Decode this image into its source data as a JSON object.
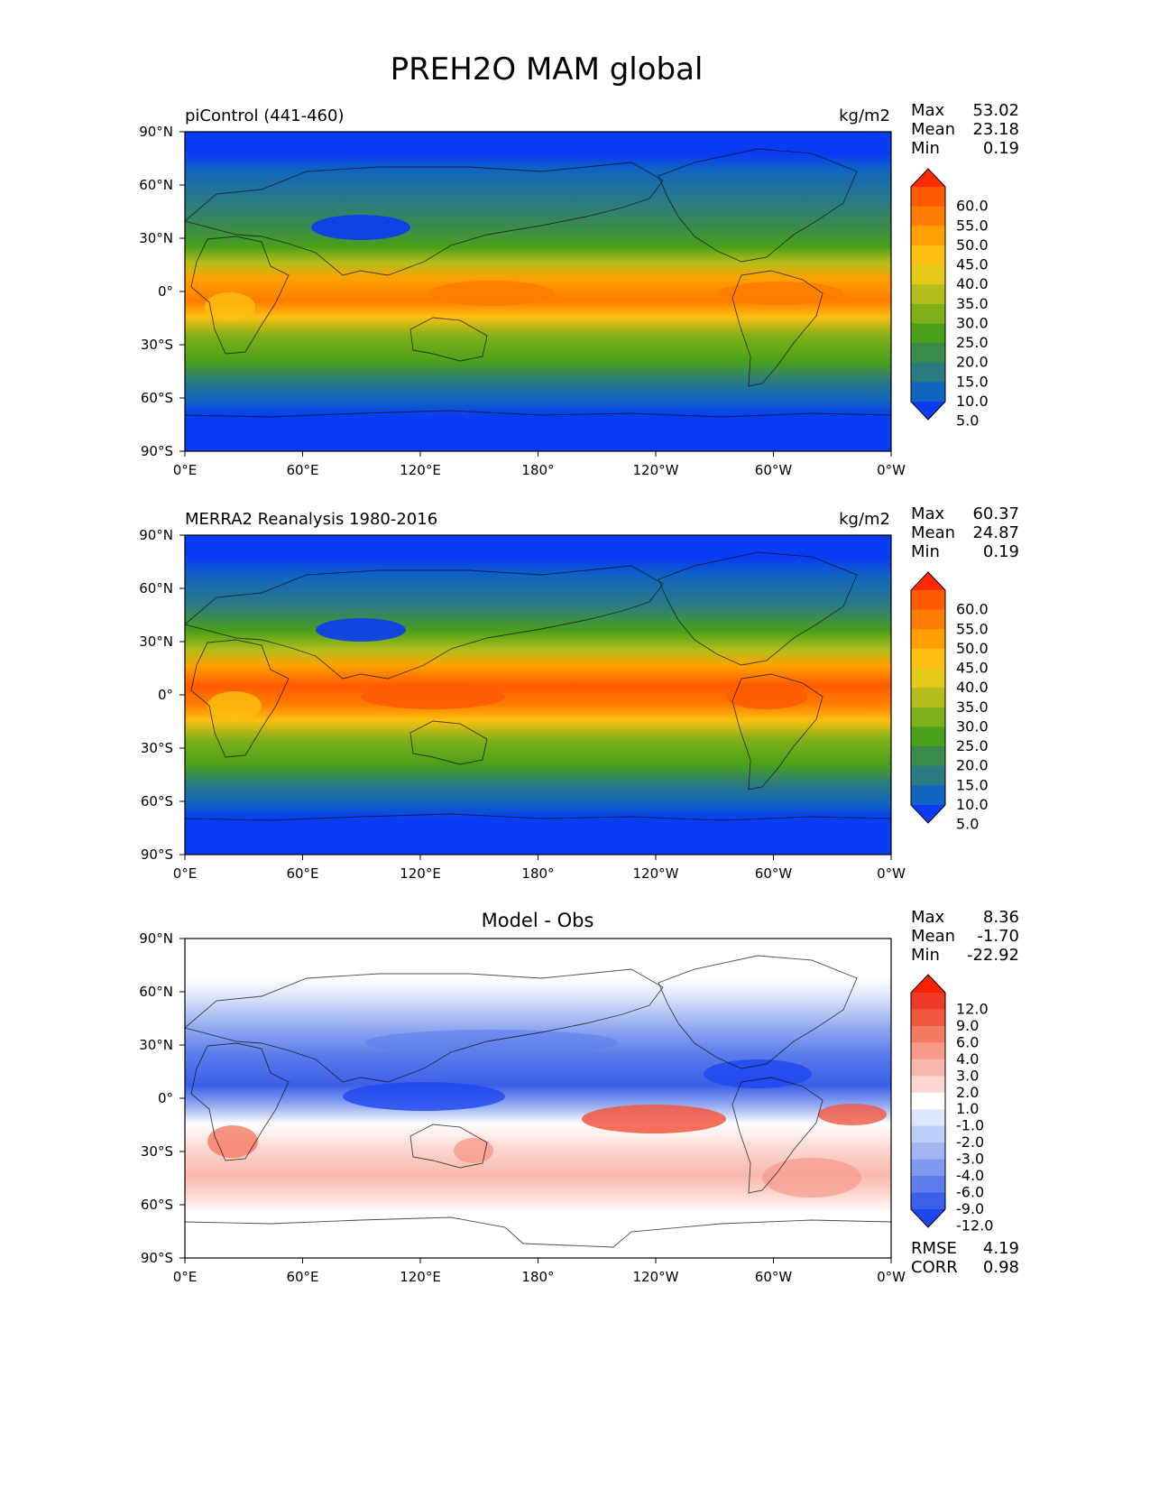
{
  "title": "PREH2O MAM global",
  "axes": {
    "lat_ticks": [
      "90°N",
      "60°N",
      "30°N",
      "0°",
      "30°S",
      "60°S",
      "90°S"
    ],
    "lon_ticks": [
      "0°E",
      "60°E",
      "120°E",
      "180°",
      "120°W",
      "60°W",
      "0°W"
    ]
  },
  "panels": [
    {
      "id": "model",
      "left_title": "piControl (441-460)",
      "center_title": "",
      "units": "kg/m2",
      "stats": [
        {
          "label": "Max",
          "value": "53.02"
        },
        {
          "label": "Mean",
          "value": "23.18"
        },
        {
          "label": "Min",
          "value": "0.19"
        }
      ],
      "colorbar": {
        "labels": [
          "60.0",
          "55.0",
          "50.0",
          "45.0",
          "40.0",
          "35.0",
          "30.0",
          "25.0",
          "20.0",
          "15.0",
          "10.0",
          "5.0"
        ],
        "colors": [
          "#ff2a00",
          "#ff5a00",
          "#ff7d00",
          "#ffa000",
          "#fbbf10",
          "#e4c81a",
          "#b4be1a",
          "#7fb019",
          "#4aa01a",
          "#3a8a4a",
          "#2a7a82",
          "#1065c0",
          "#0a3cf5"
        ]
      },
      "footer_stats": []
    },
    {
      "id": "obs",
      "left_title": "MERRA2 Reanalysis 1980-2016",
      "center_title": "",
      "units": "kg/m2",
      "stats": [
        {
          "label": "Max",
          "value": "60.37"
        },
        {
          "label": "Mean",
          "value": "24.87"
        },
        {
          "label": "Min",
          "value": "0.19"
        }
      ],
      "colorbar": {
        "labels": [
          "60.0",
          "55.0",
          "50.0",
          "45.0",
          "40.0",
          "35.0",
          "30.0",
          "25.0",
          "20.0",
          "15.0",
          "10.0",
          "5.0"
        ],
        "colors": [
          "#ff2a00",
          "#ff5a00",
          "#ff7d00",
          "#ffa000",
          "#fbbf10",
          "#e4c81a",
          "#b4be1a",
          "#7fb019",
          "#4aa01a",
          "#3a8a4a",
          "#2a7a82",
          "#1065c0",
          "#0a3cf5"
        ]
      },
      "footer_stats": []
    },
    {
      "id": "diff",
      "left_title": "",
      "center_title": "Model - Obs",
      "units": "",
      "stats": [
        {
          "label": "Max",
          "value": "8.36"
        },
        {
          "label": "Mean",
          "value": "-1.70"
        },
        {
          "label": "Min",
          "value": "-22.92"
        }
      ],
      "colorbar": {
        "labels": [
          "12.0",
          "9.0",
          "6.0",
          "4.0",
          "3.0",
          "2.0",
          "1.0",
          "-1.0",
          "-2.0",
          "-3.0",
          "-4.0",
          "-6.0",
          "-9.0",
          "-12.0"
        ],
        "colors": [
          "#ff2000",
          "#f03a2a",
          "#f2573f",
          "#f47a64",
          "#f79a8a",
          "#f9b8ad",
          "#fcd6cf",
          "#ffffff",
          "#dde6fb",
          "#bfcef6",
          "#a0b5f2",
          "#7f99ee",
          "#5c7deb",
          "#3a5fe8",
          "#1e46f0"
        ]
      },
      "footer_stats": [
        {
          "label": "RMSE",
          "value": "4.19"
        },
        {
          "label": "CORR",
          "value": "0.98"
        }
      ]
    }
  ]
}
